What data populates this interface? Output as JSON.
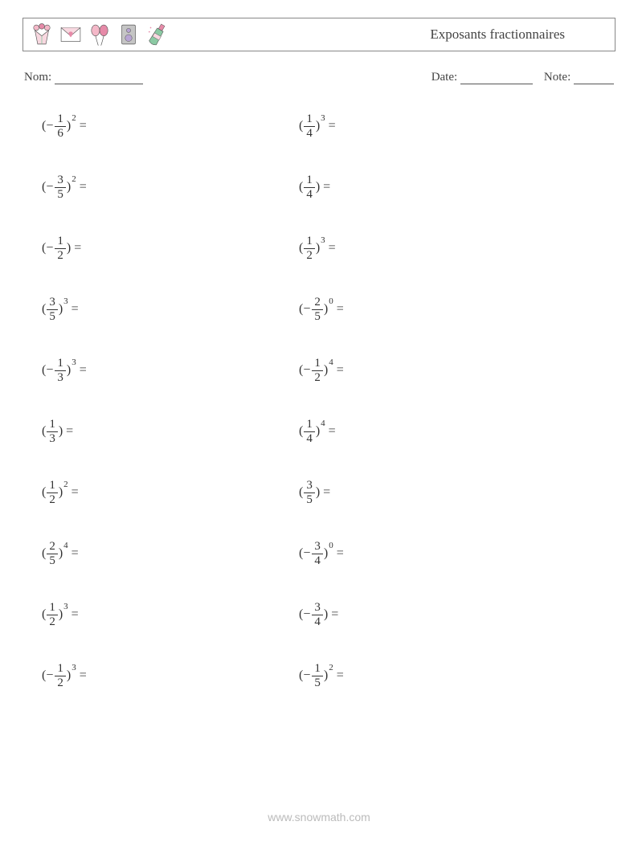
{
  "header": {
    "title": "Exposants fractionnaires",
    "icons": [
      "bouquet-icon",
      "envelope-icon",
      "balloons-icon",
      "speaker-icon",
      "bottle-icon"
    ]
  },
  "info": {
    "name_label": "Nom:",
    "name_blank_width": 110,
    "date_label": "Date:",
    "date_blank_width": 90,
    "grade_label": "Note:",
    "grade_blank_width": 50
  },
  "problems": {
    "left": [
      {
        "sign": "−",
        "num": "1",
        "den": "6",
        "exp": "2"
      },
      {
        "sign": "−",
        "num": "3",
        "den": "5",
        "exp": "2"
      },
      {
        "sign": "−",
        "num": "1",
        "den": "2",
        "exp": ""
      },
      {
        "sign": "",
        "num": "3",
        "den": "5",
        "exp": "3"
      },
      {
        "sign": "−",
        "num": "1",
        "den": "3",
        "exp": "3"
      },
      {
        "sign": "",
        "num": "1",
        "den": "3",
        "exp": ""
      },
      {
        "sign": "",
        "num": "1",
        "den": "2",
        "exp": "2"
      },
      {
        "sign": "",
        "num": "2",
        "den": "5",
        "exp": "4"
      },
      {
        "sign": "",
        "num": "1",
        "den": "2",
        "exp": "3"
      },
      {
        "sign": "−",
        "num": "1",
        "den": "2",
        "exp": "3"
      }
    ],
    "right": [
      {
        "sign": "",
        "num": "1",
        "den": "4",
        "exp": "3"
      },
      {
        "sign": "",
        "num": "1",
        "den": "4",
        "exp": ""
      },
      {
        "sign": "",
        "num": "1",
        "den": "2",
        "exp": "3"
      },
      {
        "sign": "−",
        "num": "2",
        "den": "5",
        "exp": "0"
      },
      {
        "sign": "−",
        "num": "1",
        "den": "2",
        "exp": "4"
      },
      {
        "sign": "",
        "num": "1",
        "den": "4",
        "exp": "4"
      },
      {
        "sign": "",
        "num": "3",
        "den": "5",
        "exp": ""
      },
      {
        "sign": "−",
        "num": "3",
        "den": "4",
        "exp": "0"
      },
      {
        "sign": "−",
        "num": "3",
        "den": "4",
        "exp": ""
      },
      {
        "sign": "−",
        "num": "1",
        "den": "5",
        "exp": "2"
      }
    ]
  },
  "footer": {
    "text": "www.snowmath.com"
  },
  "colors": {
    "border": "#888888",
    "text": "#333333",
    "footer": "#bbbbbb",
    "pink": "#f4b8c8",
    "pink_dark": "#e68aa8",
    "green": "#8bc9a3",
    "purple": "#b8a5d4",
    "grey": "#c5c5c5",
    "white": "#ffffff"
  }
}
